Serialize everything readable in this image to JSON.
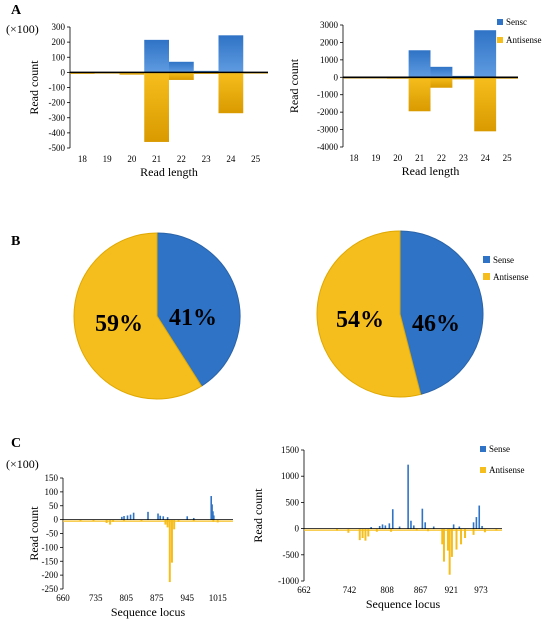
{
  "colors": {
    "sense": "#2f73c6",
    "sense_light": "#5f9be0",
    "antisense": "#f6be1d",
    "antisense_dark": "#d99a00",
    "axis": "#000000"
  },
  "panel_labels": {
    "a": "A",
    "b": "B",
    "c": "C"
  },
  "legend": {
    "sense": "Sense",
    "sense_alt": "Sensc",
    "antisense": "Antisense"
  },
  "chart_data": [
    {
      "panel": "A",
      "type": "bar",
      "scale_note": "(×100)",
      "xlabel": "Read length",
      "ylabel": "Read count",
      "categories": [
        "18",
        "19",
        "20",
        "21",
        "22",
        "23",
        "24",
        "25"
      ],
      "ylim": [
        -500,
        300
      ],
      "yticks": [
        -500,
        -400,
        -300,
        -200,
        -100,
        0,
        100,
        200,
        300
      ],
      "series": [
        {
          "name": "Sense",
          "values": [
            3,
            3,
            3,
            215,
            70,
            10,
            245,
            3
          ]
        },
        {
          "name": "Antisense",
          "values": [
            -10,
            -8,
            -15,
            -460,
            -50,
            -10,
            -270,
            -5
          ]
        }
      ]
    },
    {
      "panel": "A",
      "type": "bar",
      "xlabel": "Read length",
      "ylabel": "Read count",
      "categories": [
        "18",
        "19",
        "20",
        "21",
        "22",
        "23",
        "24",
        "25"
      ],
      "ylim": [
        -4000,
        3000
      ],
      "yticks": [
        -4000,
        -3000,
        -2000,
        -1000,
        0,
        1000,
        2000,
        3000
      ],
      "legend": "top-right",
      "series": [
        {
          "name": "Sensc",
          "values": [
            20,
            20,
            30,
            1550,
            600,
            80,
            2700,
            20
          ]
        },
        {
          "name": "Antisense",
          "values": [
            -60,
            -60,
            -80,
            -1950,
            -600,
            -120,
            -3100,
            -80
          ]
        }
      ]
    },
    {
      "panel": "B",
      "type": "pie",
      "slices": [
        {
          "name": "Sense",
          "value": 41,
          "label": "41%"
        },
        {
          "name": "Antisense",
          "value": 59,
          "label": "59%"
        }
      ]
    },
    {
      "panel": "B",
      "type": "pie",
      "legend": "right",
      "slices": [
        {
          "name": "Sense",
          "value": 46,
          "label": "46%"
        },
        {
          "name": "Antisense",
          "value": 54,
          "label": "54%"
        }
      ]
    },
    {
      "panel": "C",
      "type": "bar",
      "scale_note": "(×100)",
      "xlabel": "Sequence locus",
      "ylabel": "Read count",
      "xlim": [
        660,
        1050
      ],
      "xticks": [
        660,
        735,
        805,
        875,
        945,
        1015
      ],
      "ylim": [
        -250,
        150
      ],
      "yticks": [
        -250,
        -200,
        -150,
        -100,
        -50,
        0,
        50,
        100,
        150
      ],
      "series": [
        {
          "name": "Sense",
          "points": [
            [
              795,
              10
            ],
            [
              800,
              13
            ],
            [
              808,
              15
            ],
            [
              815,
              18
            ],
            [
              822,
              25
            ],
            [
              855,
              28
            ],
            [
              878,
              22
            ],
            [
              883,
              14
            ],
            [
              890,
              12
            ],
            [
              900,
              9
            ],
            [
              945,
              12
            ],
            [
              960,
              6
            ],
            [
              1000,
              85
            ],
            [
              1002,
              55
            ],
            [
              1004,
              30
            ],
            [
              1006,
              15
            ]
          ]
        },
        {
          "name": "Antisense",
          "points": [
            [
              700,
              -6
            ],
            [
              730,
              -5
            ],
            [
              760,
              -12
            ],
            [
              768,
              -18
            ],
            [
              775,
              -8
            ],
            [
              800,
              -6
            ],
            [
              840,
              -5
            ],
            [
              895,
              -18
            ],
            [
              900,
              -28
            ],
            [
              905,
              -225
            ],
            [
              910,
              -155
            ],
            [
              915,
              -35
            ],
            [
              925,
              -8
            ],
            [
              960,
              -6
            ],
            [
              1005,
              -8
            ],
            [
              1015,
              -10
            ]
          ]
        }
      ]
    },
    {
      "panel": "C",
      "type": "bar",
      "xlabel": "Sequence locus",
      "ylabel": "Read count",
      "xlim": [
        662,
        1010
      ],
      "xticks": [
        662,
        742,
        808,
        867,
        921,
        973
      ],
      "ylim": [
        -1000,
        1500
      ],
      "yticks": [
        -1000,
        -500,
        0,
        500,
        1000,
        1500
      ],
      "legend": "top-right",
      "series": [
        {
          "name": "Sense",
          "points": [
            [
              780,
              30
            ],
            [
              795,
              50
            ],
            [
              800,
              80
            ],
            [
              805,
              60
            ],
            [
              812,
              100
            ],
            [
              818,
              370
            ],
            [
              830,
              40
            ],
            [
              845,
              1220
            ],
            [
              850,
              150
            ],
            [
              855,
              60
            ],
            [
              870,
              380
            ],
            [
              875,
              120
            ],
            [
              890,
              40
            ],
            [
              925,
              80
            ],
            [
              935,
              40
            ],
            [
              960,
              120
            ],
            [
              965,
              220
            ],
            [
              970,
              440
            ],
            [
              975,
              50
            ]
          ]
        },
        {
          "name": "Antisense",
          "points": [
            [
              720,
              -40
            ],
            [
              740,
              -80
            ],
            [
              760,
              -220
            ],
            [
              765,
              -180
            ],
            [
              770,
              -230
            ],
            [
              775,
              -150
            ],
            [
              790,
              -60
            ],
            [
              815,
              -60
            ],
            [
              860,
              -40
            ],
            [
              880,
              -50
            ],
            [
              905,
              -300
            ],
            [
              908,
              -630
            ],
            [
              915,
              -420
            ],
            [
              918,
              -880
            ],
            [
              922,
              -540
            ],
            [
              930,
              -400
            ],
            [
              938,
              -300
            ],
            [
              945,
              -180
            ],
            [
              960,
              -120
            ],
            [
              980,
              -70
            ],
            [
              1000,
              -40
            ]
          ]
        }
      ]
    }
  ]
}
